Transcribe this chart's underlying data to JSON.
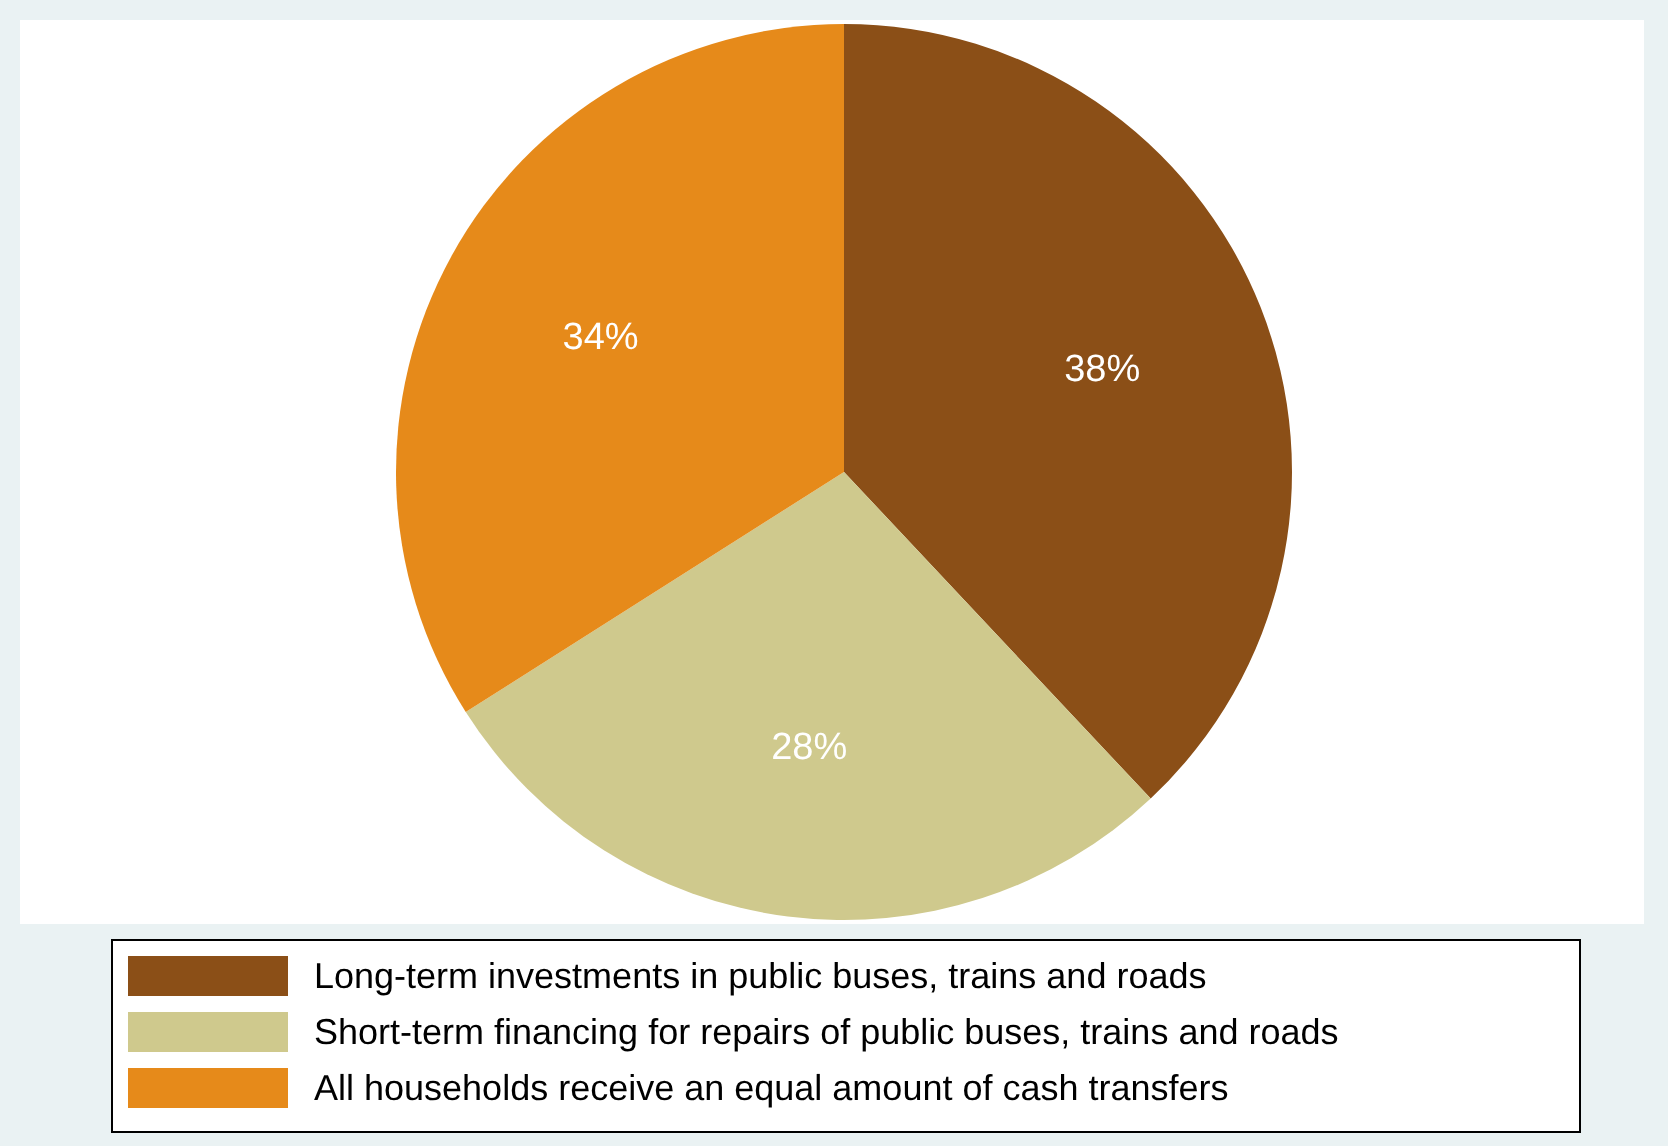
{
  "chart_data": {
    "type": "pie",
    "categories": [
      "Long-term investments in public buses, trains and roads",
      "Short-term financing for repairs of public buses, trains and roads",
      "All households receive an equal amount of cash transfers"
    ],
    "values": [
      38,
      28,
      34
    ],
    "colors": [
      "#8b4f17",
      "#cfc98d",
      "#e68a1a"
    ],
    "value_labels": [
      "38%",
      "28%",
      "34%"
    ],
    "legend": "bottom"
  }
}
